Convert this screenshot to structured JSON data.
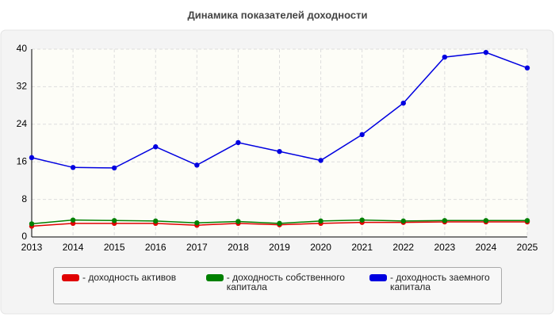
{
  "chart_data": {
    "type": "line",
    "title": "Динамика показателей доходности",
    "x": [
      2013,
      2014,
      2015,
      2016,
      2017,
      2018,
      2019,
      2020,
      2021,
      2022,
      2023,
      2024,
      2025
    ],
    "xlim": [
      2013,
      2025
    ],
    "xticks": [
      2013,
      2014,
      2015,
      2016,
      2017,
      2018,
      2019,
      2020,
      2021,
      2022,
      2023,
      2024,
      2025
    ],
    "ylim": [
      0,
      40
    ],
    "yticks": [
      0,
      8,
      16,
      24,
      32,
      40
    ],
    "grid": true,
    "series": [
      {
        "name": "- доходность активов",
        "color": "#e00000",
        "values": [
          2.3,
          2.9,
          2.9,
          2.9,
          2.5,
          2.9,
          2.6,
          2.9,
          3.1,
          3.1,
          3.2,
          3.2,
          3.2
        ]
      },
      {
        "name": "- доходность собственного капитала",
        "color": "#008000",
        "values": [
          2.8,
          3.6,
          3.5,
          3.4,
          3.0,
          3.3,
          2.9,
          3.4,
          3.6,
          3.4,
          3.5,
          3.5,
          3.5
        ]
      },
      {
        "name": "- доходность заемного капитала",
        "color": "#0000e0",
        "values": [
          16.9,
          14.8,
          14.7,
          19.2,
          15.3,
          20.1,
          18.2,
          16.3,
          21.8,
          28.5,
          38.3,
          39.3,
          36.0
        ]
      }
    ]
  }
}
